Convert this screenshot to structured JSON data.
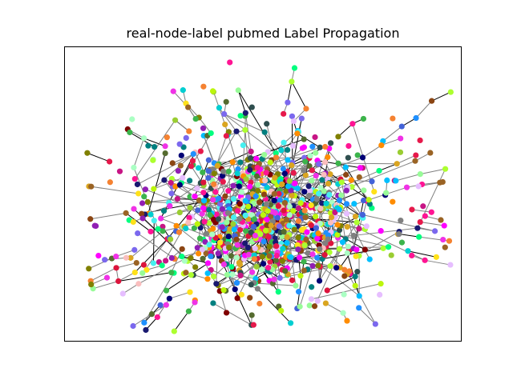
{
  "figure": {
    "title": "real-node-label pubmed Label Propagation",
    "background": "#ffffff"
  },
  "graph": {
    "layout": "force-directed node-link cloud",
    "axes_visible": false,
    "edge_colors": [
      "#808080",
      "#000000"
    ],
    "node_palette": [
      "#e6194b",
      "#3cb44b",
      "#ffe119",
      "#4363d8",
      "#f58231",
      "#911eb4",
      "#46f0f0",
      "#f032e6",
      "#bcf60c",
      "#fabebe",
      "#008080",
      "#e6beff",
      "#9a6324",
      "#800000",
      "#aaffc3",
      "#808000",
      "#000075",
      "#808080",
      "#00ff7f",
      "#ff1493",
      "#1e90ff",
      "#ff8c00",
      "#7b68ee",
      "#2f4f4f",
      "#adff2f",
      "#dc143c",
      "#00ced1",
      "#8b4513",
      "#9acd32",
      "#ff00ff",
      "#00bfff",
      "#556b2f",
      "#191970",
      "#98fb98",
      "#daa520",
      "#c71585"
    ]
  }
}
